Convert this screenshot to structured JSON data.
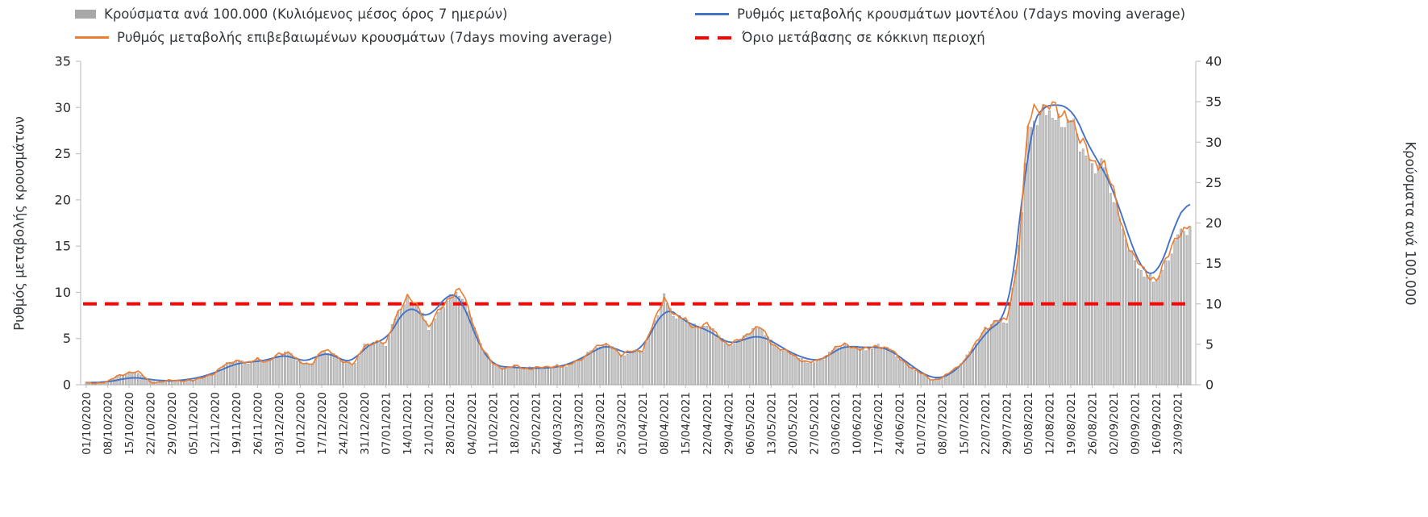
{
  "chart_data": {
    "type": "bar",
    "x_step_weeks": 0.5,
    "x_tick_labels": [
      "01/10/2020",
      "08/10/2020",
      "15/10/2020",
      "22/10/2020",
      "29/10/2020",
      "05/11/2020",
      "12/11/2020",
      "19/11/2020",
      "26/11/2020",
      "03/12/2020",
      "10/12/2020",
      "17/12/2020",
      "24/12/2020",
      "31/12/2020",
      "07/01/2021",
      "14/01/2021",
      "21/01/2021",
      "28/01/2021",
      "04/02/2021",
      "11/02/2021",
      "18/02/2021",
      "25/02/2021",
      "04/03/2021",
      "11/03/2021",
      "18/03/2021",
      "25/03/2021",
      "01/04/2021",
      "08/04/2021",
      "15/04/2021",
      "22/04/2021",
      "29/04/2021",
      "06/05/2021",
      "13/05/2021",
      "20/05/2021",
      "27/05/2021",
      "03/06/2021",
      "10/06/2021",
      "17/06/2021",
      "24/06/2021",
      "01/07/2021",
      "08/07/2021",
      "15/07/2021",
      "22/07/2021",
      "29/07/2021",
      "05/08/2021",
      "12/08/2021",
      "19/08/2021",
      "26/08/2021",
      "02/09/2021",
      "09/09/2021",
      "16/09/2021",
      "23/09/2021"
    ],
    "left_axis": {
      "label": "Ρυθμός μεταβολής κρουσμάτων",
      "min": 0,
      "max": 35,
      "ticks": [
        0,
        5,
        10,
        15,
        20,
        25,
        30,
        35
      ]
    },
    "right_axis": {
      "label": "Κρούσματα ανά 100.000",
      "min": 0,
      "max": 40,
      "ticks": [
        0,
        5,
        10,
        15,
        20,
        25,
        30,
        35,
        40
      ]
    },
    "series": [
      {
        "name": "Κρούσματα ανά 100.000 (Κυλιόμενος μέσος όρος 7 ημερών)",
        "type": "bar",
        "axis": "right",
        "color": "#c7c7c7",
        "values": [
          0.3,
          0.3,
          0.4,
          1.1,
          1.5,
          1.4,
          0.4,
          0.3,
          0.5,
          0.5,
          0.5,
          1.0,
          1.4,
          2.5,
          3.0,
          2.6,
          3.2,
          2.8,
          3.8,
          4.0,
          2.7,
          2.5,
          4.2,
          3.8,
          3.0,
          2.4,
          4.9,
          5.2,
          5.0,
          8.8,
          10.5,
          9.7,
          7.0,
          9.1,
          11.0,
          11.3,
          8.2,
          4.4,
          2.5,
          2.1,
          2.3,
          2.0,
          2.2,
          2.1,
          2.4,
          2.3,
          3.0,
          4.0,
          4.8,
          5.0,
          3.5,
          4.2,
          4.3,
          7.4,
          10.9,
          8.3,
          8.0,
          7.1,
          7.3,
          6.3,
          4.8,
          5.5,
          6.6,
          7.1,
          5.3,
          4.3,
          3.7,
          3.0,
          2.7,
          3.4,
          4.6,
          4.9,
          4.6,
          4.3,
          4.8,
          4.6,
          3.2,
          2.3,
          1.4,
          0.6,
          0.9,
          1.7,
          3.0,
          4.8,
          6.9,
          8.0,
          7.8,
          15.0,
          31.5,
          33.3,
          34.0,
          32.0,
          33.0,
          29.3,
          26.9,
          27.5,
          23.0,
          18.6,
          15.1,
          13.4,
          12.9,
          15.1,
          18.6,
          19.3
        ]
      },
      {
        "name": "Ρυθμός μεταβολής κρουσμάτων μοντέλου (7days moving average)",
        "type": "line",
        "axis": "left",
        "color": "#4472c4",
        "values": [
          0.2,
          0.25,
          0.3,
          0.5,
          0.8,
          0.75,
          0.55,
          0.45,
          0.4,
          0.5,
          0.65,
          0.9,
          1.3,
          1.8,
          2.3,
          2.45,
          2.5,
          2.7,
          3.1,
          3.25,
          2.5,
          2.6,
          3.5,
          3.3,
          2.6,
          2.3,
          4.2,
          4.6,
          4.8,
          6.5,
          8.9,
          7.8,
          7.0,
          8.8,
          10.0,
          9.8,
          6.2,
          3.6,
          2.1,
          1.9,
          1.9,
          1.8,
          1.8,
          1.8,
          1.9,
          2.2,
          2.7,
          3.3,
          4.1,
          4.3,
          3.5,
          3.3,
          4.0,
          6.0,
          8.5,
          7.8,
          6.8,
          6.3,
          6.0,
          5.2,
          4.4,
          4.6,
          5.2,
          5.3,
          4.8,
          4.0,
          3.4,
          2.9,
          2.6,
          2.7,
          3.8,
          4.2,
          4.1,
          4.0,
          4.1,
          3.9,
          3.0,
          2.2,
          1.3,
          0.7,
          0.7,
          1.3,
          2.4,
          3.9,
          5.6,
          6.6,
          7.1,
          14.0,
          27.5,
          29.5,
          30.7,
          29.9,
          30.4,
          27.5,
          25.0,
          23.5,
          21.0,
          17.5,
          14.0,
          11.8,
          11.7,
          14.5,
          18.5,
          20.0
        ]
      },
      {
        "name": "Ρυθμός μεταβολής επιβεβαιωμένων κρουσμάτων (7days moving average)",
        "type": "line",
        "axis": "left",
        "color": "#ed7d31",
        "values": [
          0.15,
          0.2,
          0.3,
          1.0,
          1.35,
          1.3,
          0.3,
          0.25,
          0.5,
          0.45,
          0.4,
          0.9,
          1.2,
          2.2,
          2.7,
          2.2,
          2.9,
          2.4,
          3.3,
          3.6,
          2.3,
          2.2,
          3.7,
          3.4,
          2.6,
          2.1,
          4.3,
          4.6,
          4.4,
          7.8,
          9.3,
          8.6,
          6.2,
          8.0,
          9.7,
          10.3,
          7.2,
          3.9,
          2.2,
          1.8,
          2.0,
          1.7,
          1.9,
          1.8,
          2.1,
          2.0,
          2.6,
          3.5,
          4.2,
          4.4,
          3.1,
          3.7,
          3.8,
          6.5,
          9.6,
          7.3,
          7.0,
          6.2,
          6.4,
          5.5,
          4.2,
          4.8,
          5.8,
          6.2,
          4.6,
          3.8,
          3.2,
          2.6,
          2.4,
          3.0,
          4.0,
          4.3,
          4.0,
          3.8,
          4.2,
          4.0,
          2.8,
          2.0,
          1.2,
          0.5,
          0.8,
          1.5,
          2.6,
          4.2,
          6.0,
          7.0,
          6.8,
          13.0,
          28.0,
          30.0,
          30.9,
          28.5,
          29.5,
          26.0,
          24.0,
          24.5,
          20.5,
          16.5,
          13.5,
          12.0,
          11.5,
          13.5,
          16.5,
          17.2
        ]
      },
      {
        "name": "Όριο μετάβασης σε κόκκινη περιοχή",
        "type": "threshold",
        "axis": "left",
        "color": "#fe0000",
        "value_left_axis": 8.75,
        "value_right_axis": 10
      }
    ]
  }
}
